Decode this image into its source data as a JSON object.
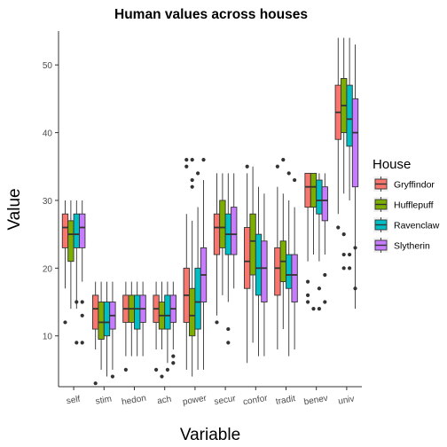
{
  "chart_data": {
    "type": "boxplot",
    "title": "Human values across houses",
    "xlabel": "Variable",
    "ylabel": "Value",
    "ylim": [
      2.5,
      55
    ],
    "yticks": [
      10,
      20,
      30,
      40,
      50
    ],
    "grid": false,
    "legend": {
      "title": "House",
      "position": "right"
    },
    "categories": [
      "self",
      "stim",
      "hedon",
      "ach",
      "power",
      "secur",
      "confor",
      "tradit",
      "benev",
      "univ"
    ],
    "series": [
      {
        "name": "Gryffindor",
        "color": "#F8766D",
        "boxes": [
          {
            "low": 17,
            "q1": 23,
            "median": 26,
            "q3": 28,
            "high": 30,
            "outliers": [
              12
            ]
          },
          {
            "low": 8,
            "q1": 11,
            "median": 14,
            "q3": 16,
            "high": 18,
            "outliers": [
              3
            ]
          },
          {
            "low": 7,
            "q1": 12,
            "median": 14,
            "q3": 16,
            "high": 18,
            "outliers": [
              5
            ]
          },
          {
            "low": 8,
            "q1": 12,
            "median": 14,
            "q3": 16,
            "high": 18,
            "outliers": [
              5
            ]
          },
          {
            "low": 5,
            "q1": 12,
            "median": 16,
            "q3": 20,
            "high": 28,
            "outliers": [
              36,
              35
            ]
          },
          {
            "low": 13,
            "q1": 22,
            "median": 26,
            "q3": 28,
            "high": 34,
            "outliers": [
              12
            ]
          },
          {
            "low": 6,
            "q1": 17,
            "median": 21,
            "q3": 26,
            "high": 34,
            "outliers": [
              35
            ]
          },
          {
            "low": 8,
            "q1": 16,
            "median": 20,
            "q3": 23,
            "high": 32,
            "outliers": [
              35
            ]
          },
          {
            "low": 21,
            "q1": 29,
            "median": 32,
            "q3": 34,
            "high": 34,
            "outliers": [
              18,
              16,
              15
            ]
          },
          {
            "low": 28,
            "q1": 39,
            "median": 43,
            "q3": 47,
            "high": 54,
            "outliers": [
              26
            ]
          }
        ]
      },
      {
        "name": "Hufflepuff",
        "color": "#7CAE00",
        "boxes": [
          {
            "low": 14,
            "q1": 21,
            "median": 25,
            "q3": 27,
            "high": 30,
            "outliers": []
          },
          {
            "low": 5,
            "q1": 9.5,
            "median": 12,
            "q3": 15,
            "high": 18,
            "outliers": []
          },
          {
            "low": 7,
            "q1": 12,
            "median": 14,
            "q3": 16,
            "high": 18,
            "outliers": []
          },
          {
            "low": 8,
            "q1": 11,
            "median": 13,
            "q3": 15,
            "high": 18,
            "outliers": [
              4
            ]
          },
          {
            "low": 4,
            "q1": 10,
            "median": 13,
            "q3": 17,
            "high": 27,
            "outliers": [
              36,
              33,
              32
            ]
          },
          {
            "low": 16,
            "q1": 23,
            "median": 26,
            "q3": 30,
            "high": 34,
            "outliers": []
          },
          {
            "low": 9,
            "q1": 19,
            "median": 24,
            "q3": 28,
            "high": 35,
            "outliers": []
          },
          {
            "low": 11,
            "q1": 18,
            "median": 21,
            "q3": 24,
            "high": 31,
            "outliers": [
              36
            ]
          },
          {
            "low": 22,
            "q1": 29,
            "median": 32,
            "q3": 34,
            "high": 34,
            "outliers": [
              14
            ]
          },
          {
            "low": 31,
            "q1": 40,
            "median": 44,
            "q3": 48,
            "high": 54,
            "outliers": [
              25,
              22,
              20
            ]
          }
        ]
      },
      {
        "name": "Ravenclaw",
        "color": "#00BFC4",
        "boxes": [
          {
            "low": 14,
            "q1": 23,
            "median": 25,
            "q3": 28,
            "high": 30,
            "outliers": [
              15,
              9
            ]
          },
          {
            "low": 4,
            "q1": 10,
            "median": 12,
            "q3": 15,
            "high": 18,
            "outliers": []
          },
          {
            "low": 7,
            "q1": 11,
            "median": 14,
            "q3": 16,
            "high": 18,
            "outliers": []
          },
          {
            "low": 6,
            "q1": 11,
            "median": 13,
            "q3": 16,
            "high": 18,
            "outliers": [
              5
            ]
          },
          {
            "low": 5,
            "q1": 11,
            "median": 15,
            "q3": 20,
            "high": 29,
            "outliers": [
              34
            ]
          },
          {
            "low": 15,
            "q1": 22,
            "median": 25,
            "q3": 28,
            "high": 34,
            "outliers": [
              11,
              9
            ]
          },
          {
            "low": 7,
            "q1": 16,
            "median": 20,
            "q3": 25,
            "high": 32,
            "outliers": []
          },
          {
            "low": 7,
            "q1": 17,
            "median": 19,
            "q3": 22,
            "high": 30,
            "outliers": [
              34
            ]
          },
          {
            "low": 21,
            "q1": 28,
            "median": 30,
            "q3": 33,
            "high": 34,
            "outliers": [
              17,
              14
            ]
          },
          {
            "low": 30,
            "q1": 38,
            "median": 42,
            "q3": 47,
            "high": 54,
            "outliers": [
              22,
              20
            ]
          }
        ]
      },
      {
        "name": "Slytherin",
        "color": "#C77CFF",
        "boxes": [
          {
            "low": 18,
            "q1": 23,
            "median": 26,
            "q3": 28,
            "high": 30,
            "outliers": [
              15,
              13,
              9
            ]
          },
          {
            "low": 5,
            "q1": 11,
            "median": 13,
            "q3": 15,
            "high": 18,
            "outliers": [
              4
            ]
          },
          {
            "low": 7,
            "q1": 12,
            "median": 14,
            "q3": 16,
            "high": 18,
            "outliers": []
          },
          {
            "low": 8,
            "q1": 12,
            "median": 14,
            "q3": 16,
            "high": 18,
            "outliers": [
              7,
              6
            ]
          },
          {
            "low": 5,
            "q1": 15,
            "median": 19,
            "q3": 23,
            "high": 33,
            "outliers": [
              36
            ]
          },
          {
            "low": 17,
            "q1": 22,
            "median": 25,
            "q3": 29,
            "high": 34,
            "outliers": []
          },
          {
            "low": 7,
            "q1": 15,
            "median": 20,
            "q3": 24,
            "high": 31,
            "outliers": []
          },
          {
            "low": 8,
            "q1": 15,
            "median": 19,
            "q3": 22,
            "high": 29,
            "outliers": [
              33
            ]
          },
          {
            "low": 22,
            "q1": 27,
            "median": 30,
            "q3": 32,
            "high": 34,
            "outliers": [
              19,
              15
            ]
          },
          {
            "low": 14,
            "q1": 32,
            "median": 40,
            "q3": 45,
            "high": 53,
            "outliers": [
              23,
              17
            ]
          }
        ]
      }
    ]
  }
}
